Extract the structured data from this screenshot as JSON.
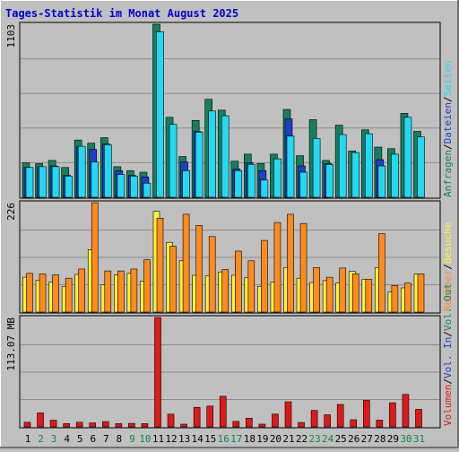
{
  "title": "Tages-Statistik im Monat August 2025",
  "colors": {
    "title": "#0000CC",
    "background": "#C0C0C0",
    "anfragen": "#157F5D",
    "dateien": "#1E3FC8",
    "seiten": "#22D8F2",
    "besuche": "#FFF23A",
    "rechner": "#FF8A1E",
    "volumen": "#E01818",
    "day_weekday": "#000000",
    "day_weekend": "#0A8A4A"
  },
  "axis_labels": {
    "top_max": "1103",
    "middle_max": "226",
    "bottom_max": "113.07 MB"
  },
  "legend_right": {
    "top": [
      {
        "key": "anfragen",
        "text": "Anfragen"
      },
      {
        "key": "sep",
        "text": "/"
      },
      {
        "key": "dateien",
        "text": "Dateien"
      },
      {
        "key": "sep",
        "text": "/"
      },
      {
        "key": "seiten",
        "text": "Seiten"
      }
    ],
    "middle": [
      {
        "key": "rechner",
        "text": "Rechner"
      },
      {
        "key": "sep",
        "text": "/"
      },
      {
        "key": "besuche",
        "text": "Besuche"
      }
    ],
    "bottom": [
      {
        "key": "volumen",
        "text": "Volumen"
      },
      {
        "key": "sep",
        "text": "/"
      },
      {
        "key": "dateien",
        "text": "Vol. In"
      },
      {
        "key": "sep",
        "text": "/"
      },
      {
        "key": "anfragen",
        "text": "Vol. Out"
      }
    ]
  },
  "chart_data": {
    "type": "bar",
    "title": "Tages-Statistik im Monat August 2025",
    "categories": [
      "1",
      "2",
      "3",
      "4",
      "5",
      "6",
      "7",
      "8",
      "9",
      "10",
      "11",
      "12",
      "13",
      "14",
      "15",
      "16",
      "17",
      "18",
      "19",
      "20",
      "21",
      "22",
      "23",
      "24",
      "25",
      "26",
      "27",
      "28",
      "29",
      "30",
      "31"
    ],
    "weekend_days": [
      "2",
      "3",
      "9",
      "10",
      "16",
      "17",
      "23",
      "24",
      "30",
      "31"
    ],
    "panels": [
      {
        "name": "top",
        "ymax": 1103,
        "series": [
          {
            "name": "Anfragen",
            "values": [
              220,
              215,
              235,
              190,
              365,
              345,
              380,
              195,
              170,
              160,
              1103,
              510,
              260,
              490,
              625,
              555,
              230,
              275,
              215,
              275,
              560,
              265,
              495,
              235,
              460,
              295,
              430,
              320,
              310,
              535,
              420
            ]
          },
          {
            "name": "Dateien",
            "values": [
              190,
              195,
              200,
              140,
              320,
              305,
              340,
              170,
              140,
              130,
              0,
              0,
              225,
              420,
              0,
              0,
              180,
              220,
              170,
              0,
              500,
              200,
              0,
              215,
              0,
              0,
              0,
              240,
              0,
              0,
              0
            ]
          },
          {
            "name": "Seiten",
            "values": [
              190,
              195,
              195,
              135,
              325,
              225,
              335,
              145,
              135,
              90,
              1055,
              465,
              170,
              415,
              550,
              520,
              170,
              210,
              110,
              245,
              390,
              160,
              375,
              210,
              400,
              285,
              405,
              200,
              275,
              510,
              385
            ]
          }
        ]
      },
      {
        "name": "middle",
        "ymax": 226,
        "series": [
          {
            "name": "Besuche",
            "values": [
              72,
              66,
              62,
              53,
              78,
              129,
              56,
              77,
              80,
              64,
              208,
              144,
              106,
              76,
              75,
              83,
              76,
              71,
              53,
              62,
              92,
              70,
              61,
              65,
              60,
              84,
              68,
              92,
              42,
              50,
              79
            ]
          },
          {
            "name": "Rechner",
            "values": [
              80,
              79,
              77,
              70,
              89,
              226,
              85,
              85,
              89,
              108,
              194,
              136,
              202,
              179,
              156,
              88,
              126,
              106,
              148,
              185,
              202,
              183,
              92,
              72,
              91,
              79,
              68,
              162,
              55,
              60,
              79
            ]
          }
        ]
      },
      {
        "name": "bottom",
        "ymax": 113.07,
        "unit": "MB",
        "series": [
          {
            "name": "Volumen",
            "values": [
              4.8,
              14.5,
              6.8,
              3.4,
              4.8,
              4.1,
              5.5,
              3.4,
              3.6,
              3.4,
              113.07,
              13.2,
              2.8,
              20.2,
              21.5,
              31.6,
              5.7,
              9.0,
              2.8,
              13.2,
              25.9,
              4.5,
              17.0,
              12.5,
              23.2,
              7.4,
              27.4,
              7.0,
              24.9,
              33.6,
              18.1
            ]
          }
        ]
      }
    ]
  }
}
